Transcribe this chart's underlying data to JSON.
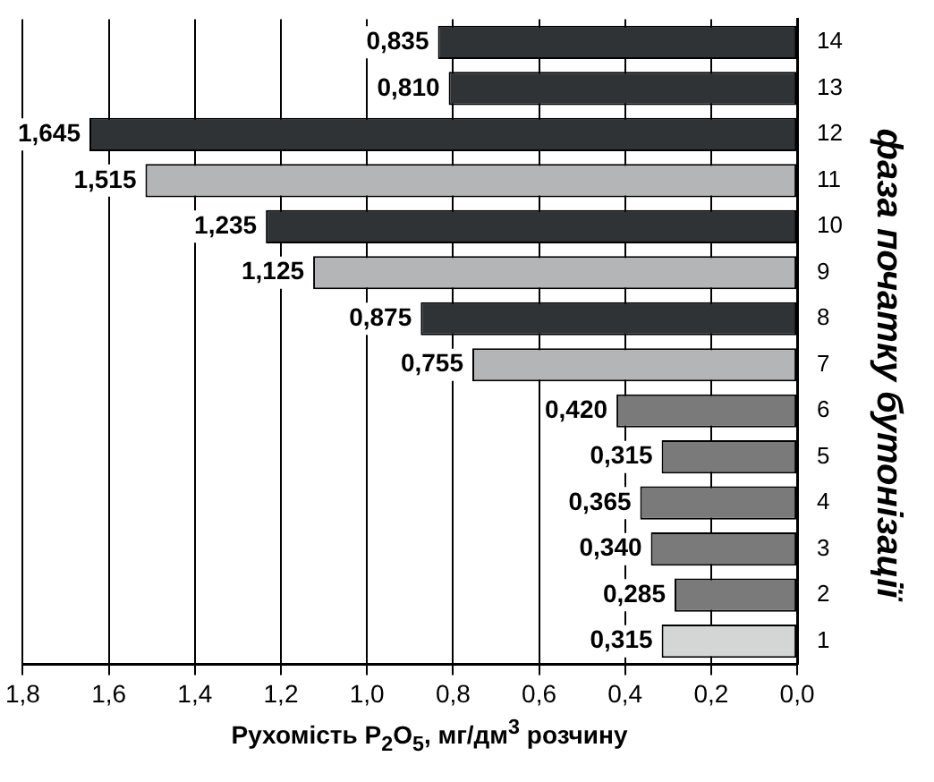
{
  "chart_data": {
    "type": "bar",
    "orientation": "horizontal",
    "title": "фаза початку бутонізації",
    "xlabel": "Рухомість P$_{2}$O$_{5}$, мг/дм$^{3}$ розчину",
    "categories": [
      "14",
      "13",
      "12",
      "11",
      "10",
      "9",
      "8",
      "7",
      "6",
      "5",
      "4",
      "3",
      "2",
      "1"
    ],
    "values": [
      0.835,
      0.81,
      1.645,
      1.515,
      1.235,
      1.125,
      0.875,
      0.755,
      0.42,
      0.315,
      0.365,
      0.34,
      0.285,
      0.315
    ],
    "value_labels": [
      "0,835",
      "0,810",
      "1,645",
      "1,515",
      "1,235",
      "1,125",
      "0,875",
      "0,755",
      "0,420",
      "0,315",
      "0,365",
      "0,340",
      "0,285",
      "0,315"
    ],
    "colors": [
      "#303336",
      "#303336",
      "#303336",
      "#b3b5b6",
      "#303336",
      "#b3b5b6",
      "#303336",
      "#b3b5b6",
      "#7a7a7a",
      "#7a7a7a",
      "#7a7a7a",
      "#7a7a7a",
      "#7a7a7a",
      "#d4d6d6"
    ],
    "xlim": [
      1.8,
      0
    ],
    "xticks": [
      {
        "value": 1.8,
        "label": "1,8"
      },
      {
        "value": 1.6,
        "label": "1,6"
      },
      {
        "value": 1.4,
        "label": "1,4"
      },
      {
        "value": 1.2,
        "label": "1,2"
      },
      {
        "value": 1.0,
        "label": "1,0"
      },
      {
        "value": 0.8,
        "label": "0,8"
      },
      {
        "value": 0.6,
        "label": "0,6"
      },
      {
        "value": 0.4,
        "label": "0,4"
      },
      {
        "value": 0.2,
        "label": "0,2"
      },
      {
        "value": 0,
        "label": "0,0"
      }
    ],
    "grid": "x",
    "legend": false
  }
}
